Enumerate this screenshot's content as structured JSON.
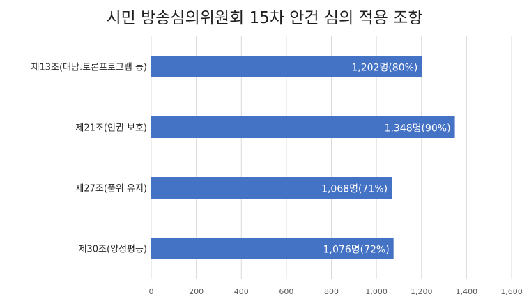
{
  "chart_data": {
    "type": "bar",
    "orientation": "horizontal",
    "title": "시민 방송심의위원회 15차 안건 심의 적용 조항",
    "categories": [
      "제13조(대담.토론프로그램 등)",
      "제21조(인권 보호)",
      "제27조(품위 유지)",
      "제30조(양성평등)"
    ],
    "values": [
      1202,
      1348,
      1068,
      1076
    ],
    "data_labels": [
      "1,202명(80%)",
      "1,348명(90%)",
      "1,068명(71%)",
      "1,076명(72%)"
    ],
    "x_ticks": [
      "0",
      "200",
      "400",
      "600",
      "800",
      "1,000",
      "1,200",
      "1,400",
      "1,600"
    ],
    "xlim": [
      0,
      1600
    ],
    "grid": true,
    "bar_color": "#4472c4",
    "gridline_color": "#d9d9d9"
  }
}
